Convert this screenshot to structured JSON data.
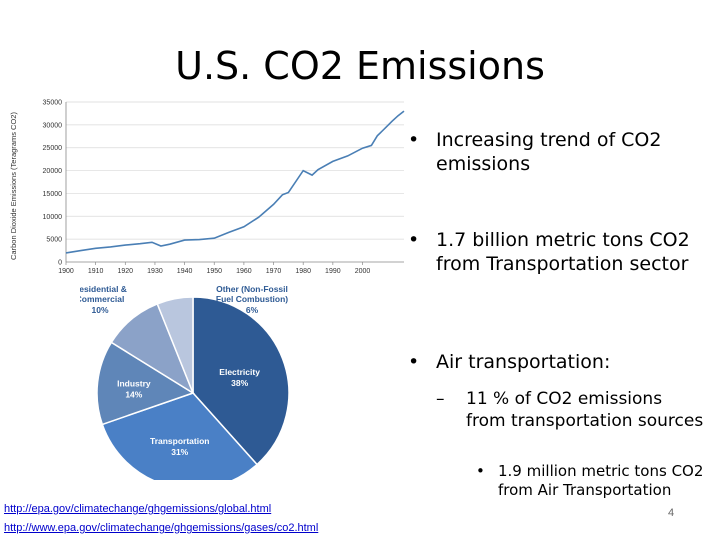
{
  "slide": {
    "title": "U.S. CO2 Emissions",
    "page_number": "4",
    "links": [
      "http://epa.gov/climatechange/ghgemissions/global.html",
      "http://www.epa.gov/climatechange/ghgemissions/gases/co2.html"
    ],
    "bullets": [
      {
        "marker": "•",
        "text": "Increasing trend of CO2 emissions"
      },
      {
        "marker": "•",
        "text": "1.7 billion metric tons CO2 from Transportation sector"
      },
      {
        "marker": "•",
        "text": "Air transportation:"
      }
    ],
    "sub_bullet": {
      "marker": "–",
      "text": "11 % of CO2 emissions from transportation sources"
    },
    "sub_sub_bullet": {
      "marker": "•",
      "text": "1.9 million metric tons CO2 from Air Transportation"
    }
  },
  "chart_data": [
    {
      "type": "line",
      "ylabel": "Carbon Dioxide Emissions (Teragrams CO2)",
      "xlabel": "",
      "x_ticks": [
        "1900",
        "1910",
        "1920",
        "1930",
        "1940",
        "1950",
        "1960",
        "1970",
        "1980",
        "1990",
        "2000"
      ],
      "y_ticks": [
        "0",
        "5000",
        "10000",
        "15000",
        "20000",
        "25000",
        "30000",
        "35000"
      ],
      "xlim": [
        1900,
        2014
      ],
      "ylim": [
        0,
        35000
      ],
      "grid": true,
      "color": "#4a7fb5",
      "x": [
        1900,
        1905,
        1910,
        1915,
        1920,
        1925,
        1929,
        1932,
        1935,
        1940,
        1945,
        1950,
        1955,
        1960,
        1965,
        1970,
        1973,
        1975,
        1980,
        1983,
        1985,
        1990,
        1995,
        2000,
        2003,
        2005,
        2008,
        2010,
        2012,
        2014
      ],
      "y": [
        2000,
        2500,
        3000,
        3300,
        3700,
        4000,
        4300,
        3500,
        3900,
        4800,
        4900,
        5200,
        6500,
        7700,
        9800,
        12600,
        14700,
        15200,
        20000,
        19000,
        20200,
        22000,
        23200,
        24900,
        25500,
        27600,
        29500,
        30800,
        32000,
        33000
      ]
    },
    {
      "type": "pie",
      "categories": [
        "Electricity",
        "Transportation",
        "Industry",
        "Residential & Commercial",
        "Other (Non-Fossil Fuel Combustion)"
      ],
      "values": [
        38,
        31,
        14,
        10,
        6
      ],
      "percent_labels": [
        "38%",
        "31%",
        "14%",
        "10%",
        "6%"
      ],
      "colors": [
        "#2e5a94",
        "#4a80c6",
        "#5f86b8",
        "#8ba2c8",
        "#b9c6de"
      ]
    }
  ]
}
